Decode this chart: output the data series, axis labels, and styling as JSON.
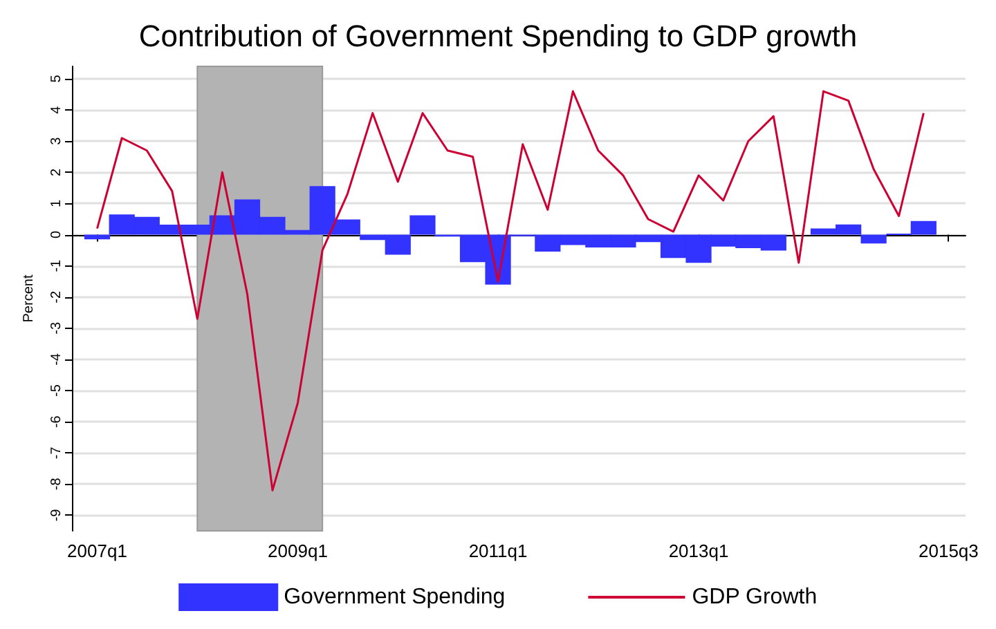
{
  "chart_data": {
    "type": "bar",
    "title": "Contribution of Government Spending to GDP growth",
    "ylabel": "Percent",
    "x": [
      "2007-01",
      "2007-04",
      "2007-07",
      "2007-10",
      "2008-01",
      "2008-04",
      "2008-07",
      "2008-10",
      "2009-01",
      "2009-04",
      "2009-07",
      "2009-10",
      "2010-01",
      "2010-04",
      "2010-07",
      "2010-10",
      "2011-01",
      "2011-04",
      "2011-07",
      "2011-10",
      "2012-01",
      "2012-04",
      "2012-07",
      "2012-10",
      "2013-01",
      "2013-04",
      "2013-07",
      "2013-10",
      "2014-01",
      "2014-04",
      "2014-07",
      "2014-10",
      "2015-01",
      "2015-04"
    ],
    "series": [
      {
        "name": "Government Spending",
        "color": "#3333ff",
        "values": [
          -0.15,
          0.65,
          0.57,
          0.32,
          0.32,
          0.62,
          1.13,
          0.57,
          0.15,
          1.56,
          0.49,
          -0.17,
          -0.64,
          0.62,
          -0.06,
          -0.88,
          -1.6,
          -0.05,
          -0.54,
          -0.33,
          -0.41,
          -0.41,
          -0.24,
          -0.75,
          -0.9,
          -0.38,
          -0.43,
          -0.51,
          null,
          0.2,
          0.33,
          -0.28,
          0.02,
          0.44
        ]
      },
      {
        "name": "GDP Growth",
        "type": "line",
        "color": "#cc0033",
        "values": [
          0.2,
          3.1,
          2.7,
          1.4,
          -2.7,
          2.0,
          -1.9,
          -8.2,
          -5.4,
          -0.5,
          1.3,
          3.9,
          1.7,
          3.9,
          2.7,
          2.5,
          -1.5,
          2.9,
          0.8,
          4.6,
          2.7,
          1.9,
          0.5,
          0.1,
          1.9,
          1.1,
          3.0,
          3.8,
          -0.9,
          4.6,
          4.3,
          2.1,
          0.6,
          3.9
        ]
      }
    ],
    "xlim": [
      "2006-10",
      "2015-09"
    ],
    "xticks": [
      {
        "value": "2007-01",
        "label": "2007q1"
      },
      {
        "value": "2009-01",
        "label": "2009q1"
      },
      {
        "value": "2011-01",
        "label": "2011q1"
      },
      {
        "value": "2013-01",
        "label": "2013q1"
      },
      {
        "value": "2015-07",
        "label": "2015q3"
      }
    ],
    "ylim": [
      -9.5,
      5.4
    ],
    "yticks": [
      -9,
      -8,
      -7,
      -6,
      -5,
      -4,
      -3,
      -2,
      -1,
      0,
      1,
      2,
      3,
      4,
      5
    ],
    "bands": [
      {
        "axis": "x",
        "from": "2008-01",
        "to": "2009-04",
        "color": "#b3b3b3"
      }
    ],
    "grid": "y",
    "legend": "bottom",
    "marker": "none",
    "line_style": "solid"
  }
}
